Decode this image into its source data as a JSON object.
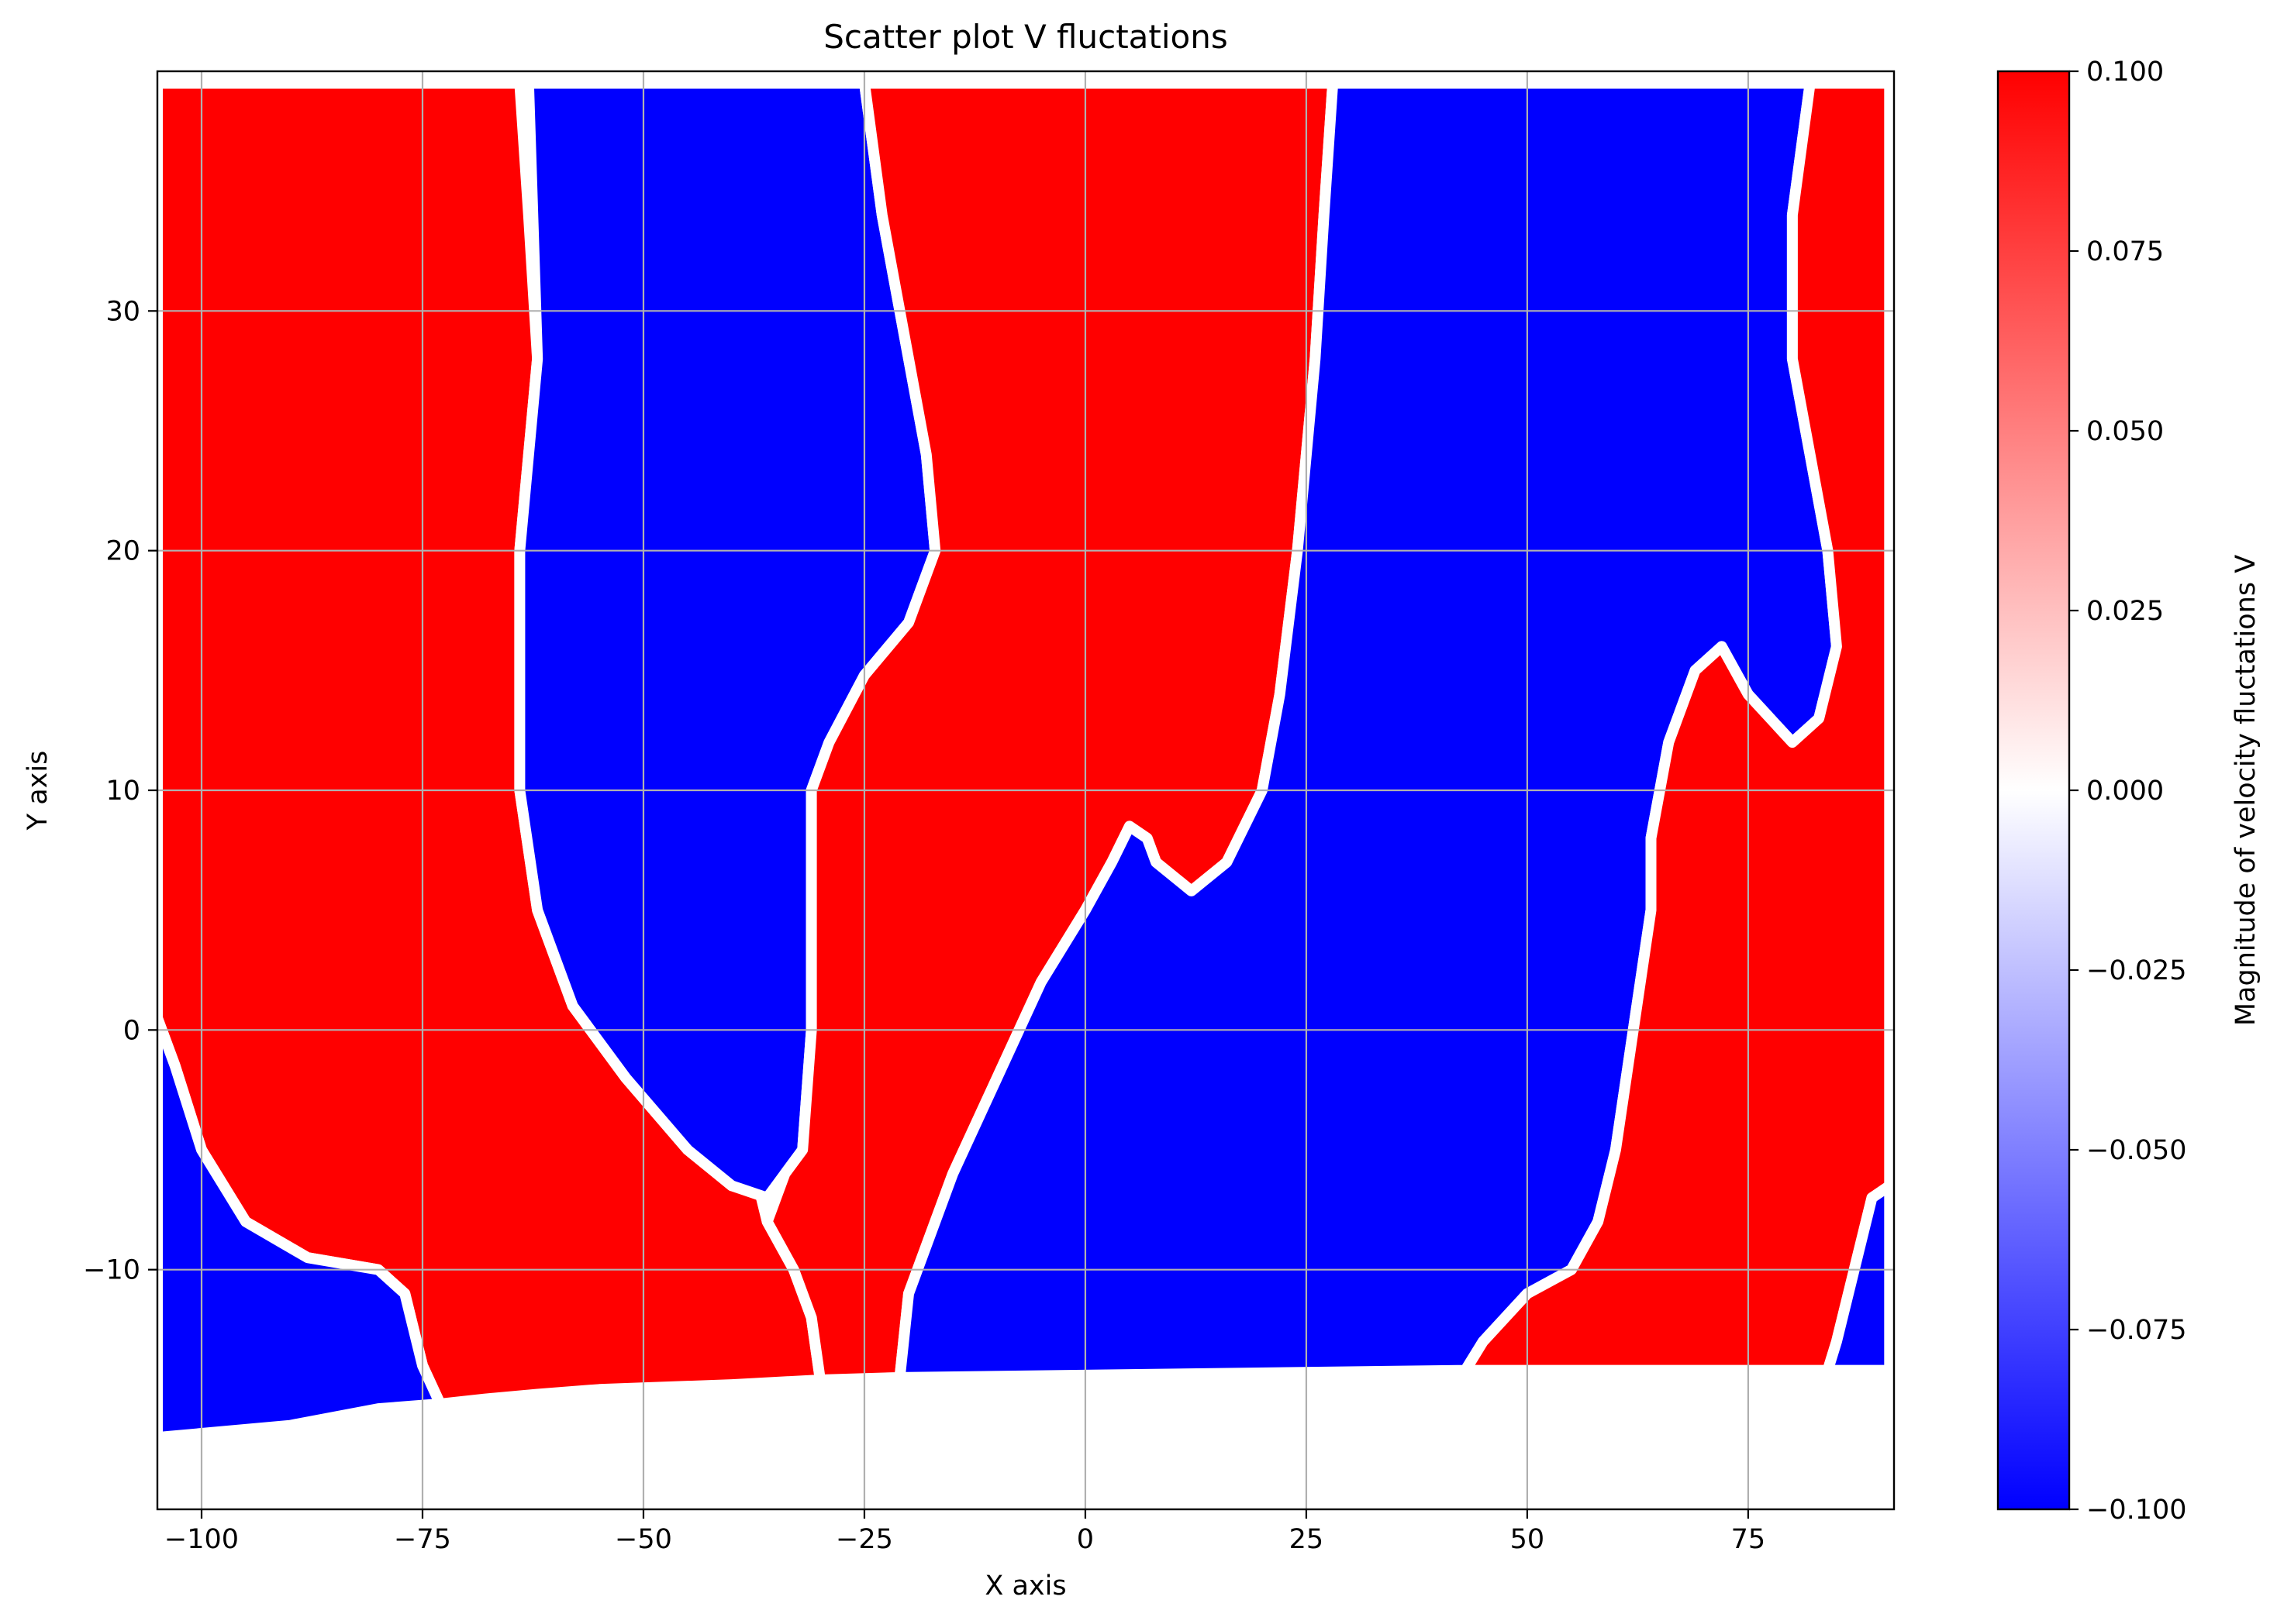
{
  "chart_data": {
    "type": "scatter",
    "title": "Scatter plot V fluctations",
    "xlabel": "X axis",
    "ylabel": "Y axis",
    "xlim": [
      -105,
      91.5
    ],
    "ylim": [
      -20,
      40
    ],
    "xticks": [
      -100,
      -75,
      -50,
      -25,
      0,
      25,
      50,
      75
    ],
    "xtick_labels": [
      "−100",
      "−75",
      "−50",
      "−25",
      "0",
      "25",
      "50",
      "75"
    ],
    "yticks": [
      -10,
      0,
      10,
      20,
      30
    ],
    "ytick_labels": [
      "−10",
      "0",
      "10",
      "20",
      "30"
    ],
    "grid": true,
    "colormap": "bwr",
    "colors": {
      "low": "#0000ff",
      "mid": "#ffffff",
      "high": "#ff0000",
      "grid": "#b0b0b0"
    },
    "colorbar": {
      "label": "Magnitude of velocity fluctations V",
      "range": [
        -0.1,
        0.1
      ],
      "ticks": [
        0.1,
        0.075,
        0.05,
        0.025,
        0.0,
        -0.025,
        -0.05,
        -0.075,
        -0.1
      ],
      "tick_labels": [
        "0.100",
        "0.075",
        "0.050",
        "0.025",
        "0.000",
        "−0.025",
        "−0.050",
        "−0.075",
        "−0.100"
      ]
    },
    "field_extent": {
      "x": [
        -105,
        91
      ],
      "y_top": 39.5,
      "bottom_edge": [
        [
          -105,
          -17
        ],
        [
          -90,
          -16.5
        ],
        [
          -80,
          -15.8
        ],
        [
          -70,
          -15.3
        ],
        [
          -55,
          -15
        ],
        [
          -40,
          -14.8
        ],
        [
          -25,
          -14.5
        ],
        [
          91,
          -14.2
        ]
      ]
    },
    "regions": [
      {
        "sign": "positive",
        "value": 0.1,
        "boundary": [
          [
            -105,
            39.5
          ],
          [
            -64,
            39.5
          ],
          [
            -63,
            34
          ],
          [
            -62,
            28
          ],
          [
            -64,
            20
          ],
          [
            -64,
            10
          ],
          [
            -62,
            5
          ],
          [
            -58,
            1
          ],
          [
            -52,
            -2
          ],
          [
            -45,
            -5
          ],
          [
            -40,
            -6.5
          ],
          [
            -37,
            -6.5
          ],
          [
            -36,
            -8
          ],
          [
            -33,
            -10
          ],
          [
            -31,
            -12
          ],
          [
            -30,
            -14.6
          ],
          [
            -40,
            -14.8
          ],
          [
            -55,
            -15
          ],
          [
            -62,
            -15.2
          ],
          [
            -68,
            -15.4
          ],
          [
            -73,
            -15.6
          ],
          [
            -75,
            -14
          ],
          [
            -77,
            -11
          ],
          [
            -80,
            -10
          ],
          [
            -88,
            -9.5
          ],
          [
            -95,
            -8
          ],
          [
            -100,
            -5
          ],
          [
            -103,
            -1.5
          ],
          [
            -105,
            0.5
          ]
        ]
      },
      {
        "sign": "negative",
        "value": -0.1,
        "boundary": [
          [
            -63,
            39.5
          ],
          [
            -25,
            39.5
          ],
          [
            -23,
            34
          ],
          [
            -20,
            28
          ],
          [
            -18,
            24
          ],
          [
            -17,
            20
          ],
          [
            -20,
            17
          ],
          [
            -25,
            14.8
          ],
          [
            -29,
            12
          ],
          [
            -31,
            10
          ],
          [
            -31,
            5
          ],
          [
            -31,
            0
          ],
          [
            -32,
            -5
          ],
          [
            -34,
            -6
          ],
          [
            -36,
            -7
          ],
          [
            -40,
            -6.5
          ],
          [
            -45,
            -5
          ],
          [
            -52,
            -2
          ],
          [
            -58,
            1
          ],
          [
            -62,
            5
          ],
          [
            -64,
            10
          ],
          [
            -64,
            20
          ],
          [
            -62,
            28
          ]
        ]
      },
      {
        "sign": "positive",
        "value": 0.1,
        "boundary": [
          [
            -25,
            39.5
          ],
          [
            28,
            39.5
          ],
          [
            27,
            34
          ],
          [
            26,
            28
          ],
          [
            24,
            20
          ],
          [
            22,
            14
          ],
          [
            20,
            10
          ],
          [
            16,
            7
          ],
          [
            12,
            5.8
          ],
          [
            8,
            7
          ],
          [
            7,
            8
          ],
          [
            5,
            8.5
          ],
          [
            3,
            7
          ],
          [
            0,
            5
          ],
          [
            -5,
            2
          ],
          [
            -10,
            -2
          ],
          [
            -15,
            -6
          ],
          [
            -20,
            -11
          ],
          [
            -21,
            -14.5
          ],
          [
            -30,
            -14.6
          ],
          [
            -31,
            -12
          ],
          [
            -33,
            -10
          ],
          [
            -36,
            -8
          ],
          [
            -34,
            -6
          ],
          [
            -32,
            -5
          ],
          [
            -31,
            0
          ],
          [
            -31,
            5
          ],
          [
            -31,
            10
          ],
          [
            -29,
            12
          ],
          [
            -25,
            14.8
          ],
          [
            -20,
            17
          ],
          [
            -17,
            20
          ],
          [
            -18,
            24
          ],
          [
            -20,
            28
          ],
          [
            -23,
            34
          ]
        ]
      },
      {
        "sign": "negative",
        "value": -0.1,
        "boundary": [
          [
            28,
            39.5
          ],
          [
            82,
            39.5
          ],
          [
            80,
            34
          ],
          [
            80,
            28
          ],
          [
            82,
            24
          ],
          [
            84,
            20
          ],
          [
            85,
            16
          ],
          [
            83,
            13
          ],
          [
            80,
            12
          ],
          [
            75,
            14
          ],
          [
            72,
            16
          ],
          [
            69,
            15
          ],
          [
            66,
            12
          ],
          [
            64,
            8
          ],
          [
            64,
            5
          ],
          [
            62,
            0
          ],
          [
            60,
            -5
          ],
          [
            58,
            -8
          ],
          [
            55,
            -10
          ],
          [
            50,
            -11
          ],
          [
            45,
            -13
          ],
          [
            43,
            -14.2
          ],
          [
            -21,
            -14.5
          ],
          [
            -20,
            -11
          ],
          [
            -15,
            -6
          ],
          [
            -10,
            -2
          ],
          [
            -5,
            2
          ],
          [
            0,
            5
          ],
          [
            3,
            7
          ],
          [
            5,
            8.5
          ],
          [
            7,
            8
          ],
          [
            8,
            7
          ],
          [
            12,
            5.8
          ],
          [
            16,
            7
          ],
          [
            20,
            10
          ],
          [
            22,
            14
          ],
          [
            24,
            20
          ],
          [
            26,
            28
          ],
          [
            27,
            34
          ]
        ]
      },
      {
        "sign": "positive",
        "value": 0.1,
        "boundary": [
          [
            82,
            39.5
          ],
          [
            91,
            39.5
          ],
          [
            91,
            -6.5
          ],
          [
            89,
            -7
          ],
          [
            87,
            -10
          ],
          [
            85,
            -13
          ],
          [
            84,
            -14.2
          ],
          [
            43,
            -14.2
          ],
          [
            45,
            -13
          ],
          [
            50,
            -11
          ],
          [
            55,
            -10
          ],
          [
            58,
            -8
          ],
          [
            60,
            -5
          ],
          [
            62,
            0
          ],
          [
            64,
            5
          ],
          [
            64,
            8
          ],
          [
            66,
            12
          ],
          [
            69,
            15
          ],
          [
            72,
            16
          ],
          [
            75,
            14
          ],
          [
            80,
            12
          ],
          [
            83,
            13
          ],
          [
            85,
            16
          ],
          [
            84,
            20
          ],
          [
            82,
            24
          ],
          [
            80,
            28
          ],
          [
            80,
            34
          ]
        ]
      },
      {
        "sign": "negative",
        "value": -0.1,
        "boundary": [
          [
            91,
            -6.5
          ],
          [
            91,
            -14.2
          ],
          [
            84,
            -14.2
          ],
          [
            85,
            -13
          ],
          [
            87,
            -10
          ],
          [
            89,
            -7
          ]
        ]
      },
      {
        "sign": "negative",
        "value": -0.1,
        "boundary": [
          [
            -105,
            0.5
          ],
          [
            -103,
            -1.5
          ],
          [
            -100,
            -5
          ],
          [
            -95,
            -8
          ],
          [
            -88,
            -9.5
          ],
          [
            -80,
            -10
          ],
          [
            -77,
            -11
          ],
          [
            -75,
            -14
          ],
          [
            -73,
            -15.6
          ],
          [
            -80,
            -15.8
          ],
          [
            -90,
            -16.5
          ],
          [
            -105,
            -17
          ]
        ]
      }
    ]
  }
}
